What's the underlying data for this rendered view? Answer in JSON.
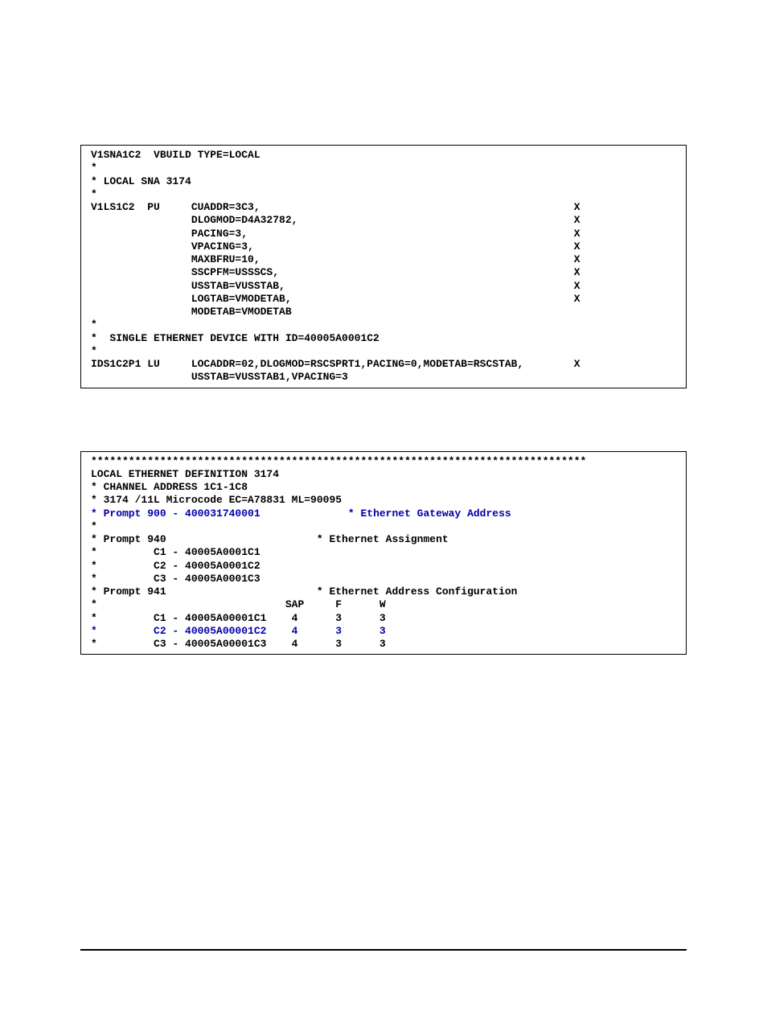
{
  "colors": {
    "text": "#000000",
    "highlight": "#0000aa",
    "background": "#ffffff",
    "border": "#000000"
  },
  "typography": {
    "mono_family": "Courier New",
    "mono_size_pt": 10,
    "serif_family": "Times",
    "caption_style": "italic",
    "caption_size_pt": 10,
    "bold": true
  },
  "figures": {
    "fig1": {
      "caption": "",
      "lines": [
        {
          "t": "V1SNA1C2  VBUILD TYPE=LOCAL",
          "cont": ""
        },
        {
          "t": "*",
          "cont": ""
        },
        {
          "t": "* LOCAL SNA 3174",
          "cont": ""
        },
        {
          "t": "*",
          "cont": ""
        },
        {
          "t": "V1LS1C2  PU     CUADDR=3C3,",
          "cont": "X"
        },
        {
          "t": "                DLOGMOD=D4A32782,",
          "cont": "X"
        },
        {
          "t": "                PACING=3,",
          "cont": "X"
        },
        {
          "t": "                VPACING=3,",
          "cont": "X"
        },
        {
          "t": "                MAXBFRU=10,",
          "cont": "X"
        },
        {
          "t": "                SSCPFM=USSSCS,",
          "cont": "X"
        },
        {
          "t": "                USSTAB=VUSSTAB,",
          "cont": "X"
        },
        {
          "t": "                LOGTAB=VMODETAB,",
          "cont": "X"
        },
        {
          "t": "                MODETAB=VMODETAB",
          "cont": ""
        },
        {
          "t": "*",
          "cont": ""
        },
        {
          "t": "*  SINGLE ETHERNET DEVICE WITH ID=40005A0001C2",
          "cont": ""
        },
        {
          "t": "*",
          "cont": ""
        },
        {
          "t": "IDS1C2P1 LU     LOCADDR=02,DLOGMOD=RSCSPRT1,PACING=0,MODETAB=RSCSTAB,",
          "cont": "X"
        },
        {
          "t": "                USSTAB=VUSSTAB1,VPACING=3",
          "cont": ""
        }
      ],
      "line_width_chars": 78
    },
    "fig2": {
      "caption": "",
      "lines": [
        {
          "t": "*******************************************************************************",
          "hl": false
        },
        {
          "t": "LOCAL ETHERNET DEFINITION 3174",
          "hl": false
        },
        {
          "t": "* CHANNEL ADDRESS 1C1-1C8",
          "hl": false
        },
        {
          "t": "* 3174 /11L Microcode EC=A78831 ML=90095",
          "hl": false
        },
        {
          "seg": [
            {
              "t": "* Prompt 900 - 400031740001              ",
              "hl": true
            },
            {
              "t": "* Ethernet Gateway Address",
              "hl": true
            }
          ]
        },
        {
          "t": "*",
          "hl": false
        },
        {
          "t": "* Prompt 940                        * Ethernet Assignment",
          "hl": false
        },
        {
          "t": "*         C1 - 40005A0001C1",
          "hl": false
        },
        {
          "t": "*         C2 - 40005A0001C2",
          "hl": false
        },
        {
          "t": "*         C3 - 40005A0001C3",
          "hl": false
        },
        {
          "t": "* Prompt 941                        * Ethernet Address Configuration",
          "hl": false
        },
        {
          "t": "*                              SAP     F      W",
          "hl": false
        },
        {
          "t": "*         C1 - 40005A00001C1    4      3      3",
          "hl": false
        },
        {
          "t": "*         C2 - 40005A00001C2    4      3      3",
          "hl": true
        },
        {
          "t": "*         C3 - 40005A00001C3    4      3      3",
          "hl": false
        }
      ]
    }
  },
  "footer": {
    "left": "",
    "right": ""
  }
}
